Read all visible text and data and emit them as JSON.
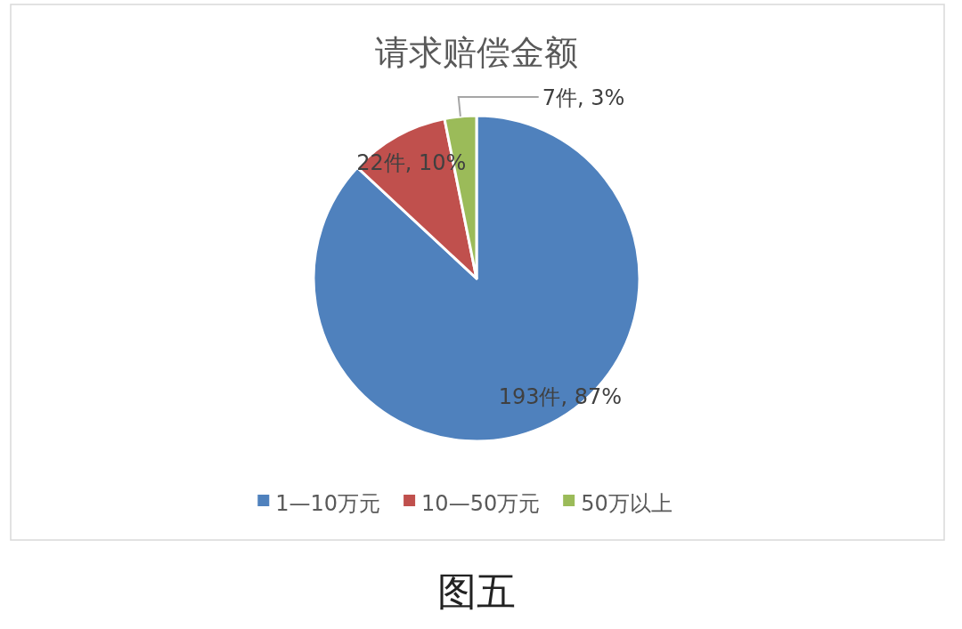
{
  "chart_data": {
    "type": "pie",
    "title": "请求赔偿金额",
    "categories": [
      "1—10万元",
      "10—50万元",
      "50万以上"
    ],
    "values": [
      193,
      22,
      7
    ],
    "value_labels": [
      "193件, 87%",
      "22件, 10%",
      "7件, 3%"
    ],
    "colors": [
      "#4f81bd",
      "#c0504d",
      "#9bbb59"
    ],
    "legend": "bottom",
    "annotations": [
      "图五"
    ]
  }
}
